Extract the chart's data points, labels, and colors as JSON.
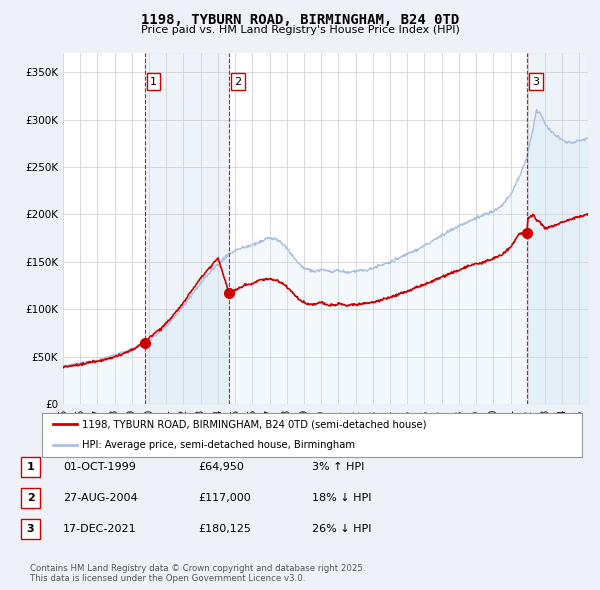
{
  "title": "1198, TYBURN ROAD, BIRMINGHAM, B24 0TD",
  "subtitle": "Price paid vs. HM Land Registry's House Price Index (HPI)",
  "ylim": [
    0,
    370000
  ],
  "yticks": [
    0,
    50000,
    100000,
    150000,
    200000,
    250000,
    300000,
    350000
  ],
  "sale_dates_num": [
    1999.75,
    2004.66,
    2021.96
  ],
  "sale_prices": [
    64950,
    117000,
    180125
  ],
  "sale_labels": [
    "1",
    "2",
    "3"
  ],
  "legend_line1": "1198, TYBURN ROAD, BIRMINGHAM, B24 0TD (semi-detached house)",
  "legend_line2": "HPI: Average price, semi-detached house, Birmingham",
  "table_data": [
    [
      "1",
      "01-OCT-1999",
      "£64,950",
      "3% ↑ HPI"
    ],
    [
      "2",
      "27-AUG-2004",
      "£117,000",
      "18% ↓ HPI"
    ],
    [
      "3",
      "17-DEC-2021",
      "£180,125",
      "26% ↓ HPI"
    ]
  ],
  "footer": "Contains HM Land Registry data © Crown copyright and database right 2025.\nThis data is licensed under the Open Government Licence v3.0.",
  "hpi_color": "#aabfdf",
  "hpi_fill_color": "#d0e4f7",
  "price_color": "#cc0000",
  "vline_color": "#cc0000",
  "background_color": "#eef2f8",
  "plot_bg_color": "#ffffff",
  "shaded_color": "#dce8f5"
}
